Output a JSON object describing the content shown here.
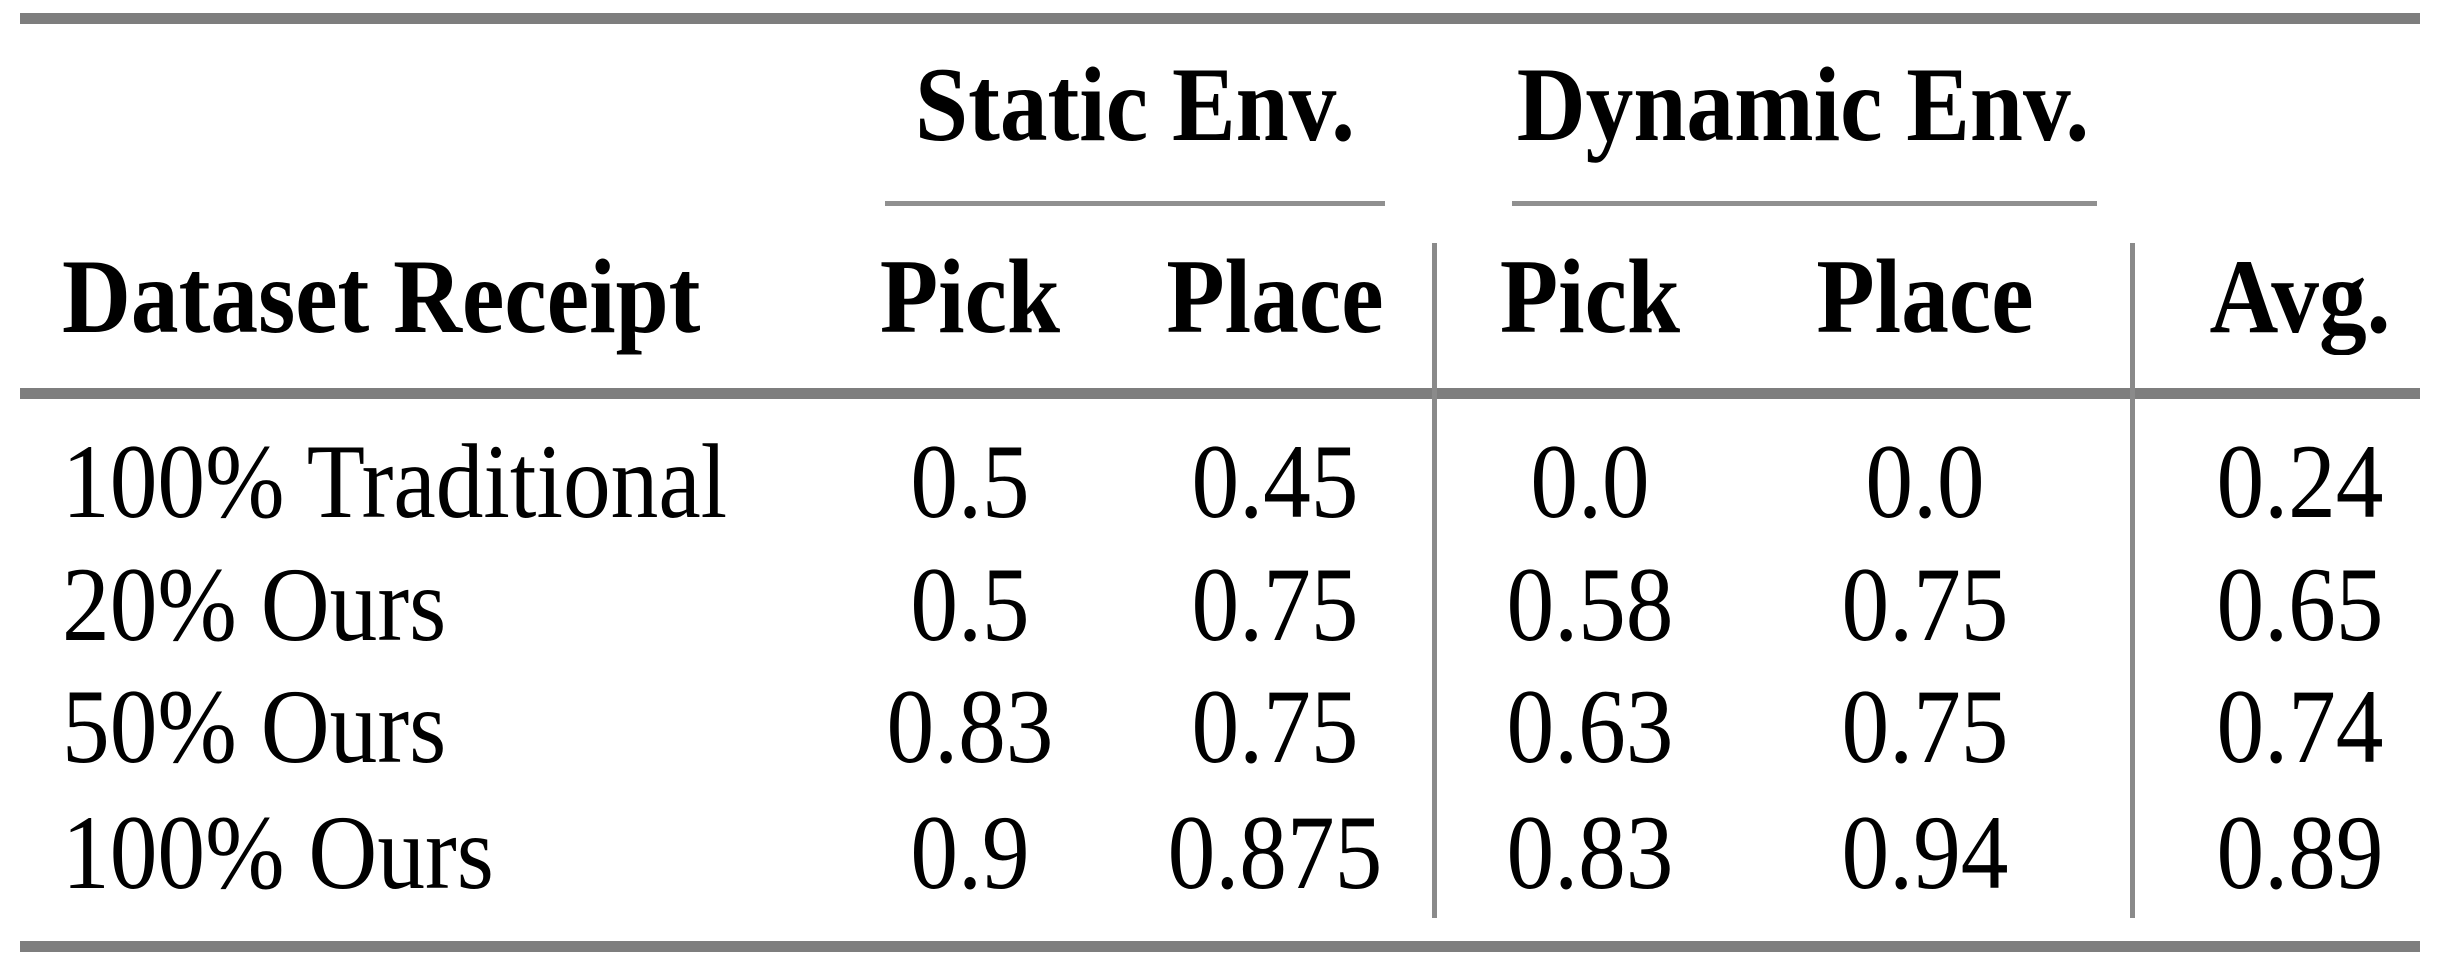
{
  "table": {
    "col_groups": [
      {
        "label": "Static Env."
      },
      {
        "label": "Dynamic Env."
      }
    ],
    "headers": {
      "row_label": "Dataset Receipt",
      "static_pick": "Pick",
      "static_place": "Place",
      "dynamic_pick": "Pick",
      "dynamic_place": "Place",
      "avg": "Avg."
    },
    "rows": [
      {
        "label": "100% Traditional",
        "static_pick": "0.5",
        "static_place": "0.45",
        "dynamic_pick": "0.0",
        "dynamic_place": "0.0",
        "avg": "0.24"
      },
      {
        "label": "20% Ours",
        "static_pick": "0.5",
        "static_place": "0.75",
        "dynamic_pick": "0.58",
        "dynamic_place": "0.75",
        "avg": "0.65"
      },
      {
        "label": "50% Ours",
        "static_pick": "0.83",
        "static_place": "0.75",
        "dynamic_pick": "0.63",
        "dynamic_place": "0.75",
        "avg": "0.74"
      },
      {
        "label": "100% Ours",
        "static_pick": "0.9",
        "static_place": "0.875",
        "dynamic_pick": "0.83",
        "dynamic_place": "0.94",
        "avg": "0.89"
      }
    ]
  },
  "colors": {
    "rule_thick": "#7e7e7e",
    "rule_thin": "#909090",
    "vertical_separator": "#8a8a8a",
    "text": "#000000",
    "background": "#ffffff"
  }
}
